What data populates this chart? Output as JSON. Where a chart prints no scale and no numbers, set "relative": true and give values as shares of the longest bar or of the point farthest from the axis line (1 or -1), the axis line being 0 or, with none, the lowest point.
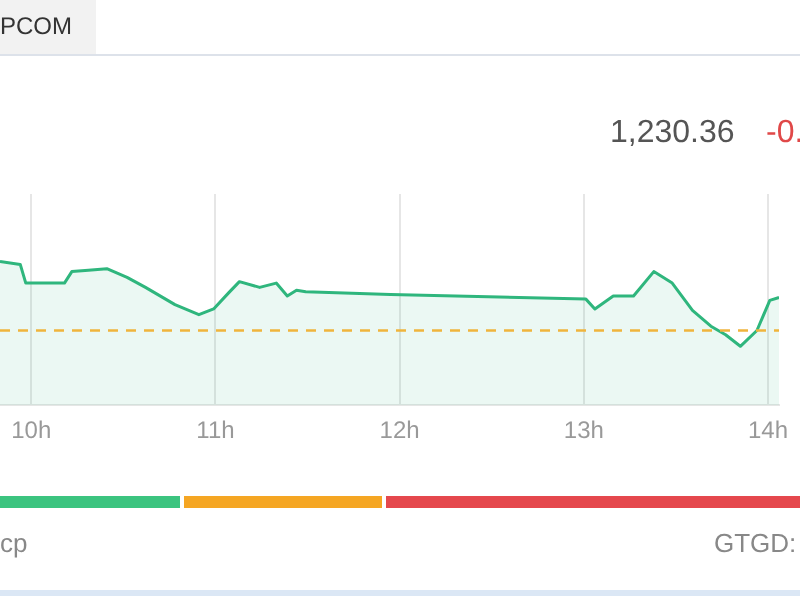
{
  "chart_data": {
    "type": "area",
    "title": "PCOM",
    "relative": true,
    "legend": false,
    "grid": "x",
    "marker": "none",
    "line_style": "solid",
    "x": [
      9.83,
      9.94,
      9.97,
      10.1,
      10.18,
      10.22,
      10.31,
      10.41,
      10.52,
      10.62,
      10.78,
      10.91,
      10.99,
      11.07,
      11.13,
      11.24,
      11.33,
      11.39,
      11.44,
      11.49,
      11.95,
      13.01,
      13.06,
      13.16,
      13.27,
      13.38,
      13.48,
      13.59,
      13.69,
      13.77,
      13.85,
      13.94,
      14.01,
      14.06
    ],
    "xlim": [
      9.83,
      14.06
    ],
    "xticks": [
      {
        "value": 10,
        "label": "10h"
      },
      {
        "value": 11,
        "label": "11h"
      },
      {
        "value": 12,
        "label": "12h"
      },
      {
        "value": 13,
        "label": "13h"
      },
      {
        "value": 14,
        "label": "14h"
      }
    ],
    "series": [
      {
        "color": "#2fb67d",
        "values": [
          1.0,
          0.98,
          0.85,
          0.85,
          0.85,
          0.93,
          0.94,
          0.95,
          0.89,
          0.82,
          0.7,
          0.63,
          0.67,
          0.78,
          0.86,
          0.82,
          0.85,
          0.76,
          0.8,
          0.79,
          0.77,
          0.74,
          0.67,
          0.76,
          0.76,
          0.93,
          0.85,
          0.66,
          0.55,
          0.49,
          0.41,
          0.52,
          0.73,
          0.75
        ]
      }
    ],
    "ref_lines": [
      {
        "axis": "y",
        "value": 0.52,
        "color": "#f0b43c",
        "line_style": "dashed"
      }
    ],
    "annotations": [
      "1,230.36",
      "-0.",
      "cp",
      "GTGD:"
    ]
  }
}
